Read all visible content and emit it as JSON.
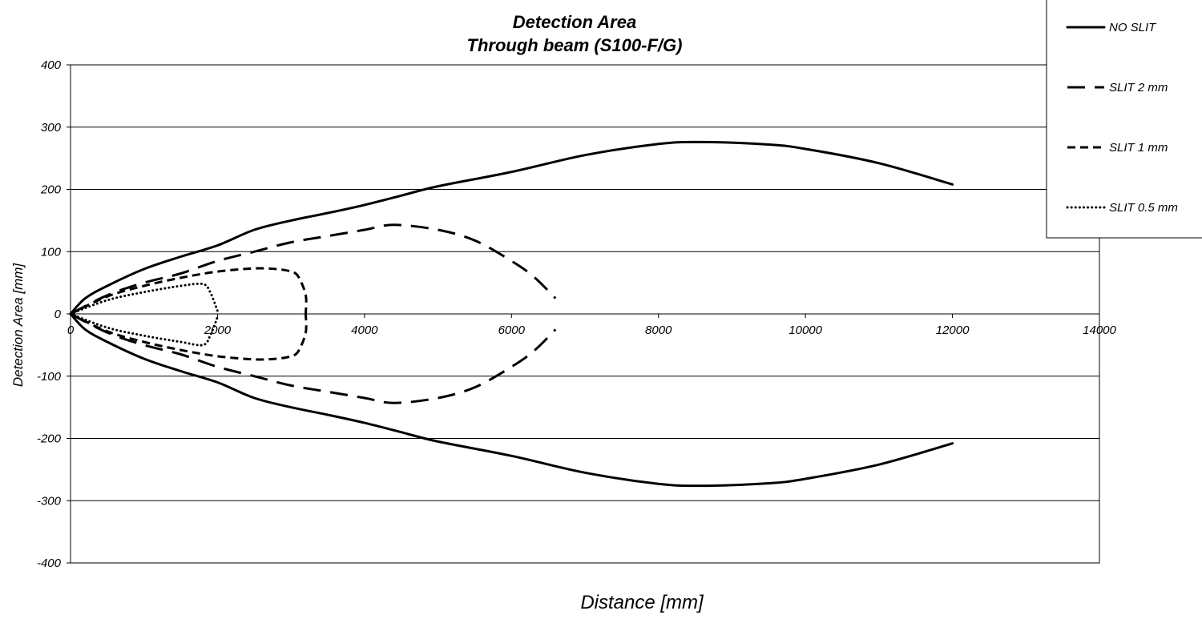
{
  "chart_data": {
    "type": "line",
    "title": "Detection Area",
    "subtitle": "Through beam (S100-F/G)",
    "xlabel": "Distance [mm]",
    "ylabel": "Detection Area [mm]",
    "xlim": [
      0,
      14000
    ],
    "ylim": [
      -400,
      400
    ],
    "x_ticks": [
      0,
      2000,
      4000,
      6000,
      8000,
      10000,
      12000,
      14000
    ],
    "y_ticks": [
      400,
      300,
      200,
      100,
      0,
      -100,
      -200,
      -300,
      -400
    ],
    "grid": "horizontal",
    "legend_position": "top-right",
    "series": [
      {
        "name": "NO SLIT",
        "style": "solid",
        "upper": [
          [
            0,
            0
          ],
          [
            200,
            25
          ],
          [
            500,
            45
          ],
          [
            1000,
            72
          ],
          [
            1500,
            92
          ],
          [
            2000,
            110
          ],
          [
            2500,
            135
          ],
          [
            3000,
            150
          ],
          [
            3500,
            162
          ],
          [
            4000,
            175
          ],
          [
            4500,
            190
          ],
          [
            5000,
            205
          ],
          [
            6000,
            228
          ],
          [
            7000,
            255
          ],
          [
            8000,
            273
          ],
          [
            8600,
            276
          ],
          [
            9500,
            272
          ],
          [
            10000,
            265
          ],
          [
            11000,
            242
          ],
          [
            12000,
            208
          ]
        ],
        "lower": [
          [
            0,
            0
          ],
          [
            200,
            -25
          ],
          [
            500,
            -45
          ],
          [
            1000,
            -72
          ],
          [
            1500,
            -92
          ],
          [
            2000,
            -110
          ],
          [
            2500,
            -135
          ],
          [
            3000,
            -150
          ],
          [
            3500,
            -162
          ],
          [
            4000,
            -175
          ],
          [
            4500,
            -190
          ],
          [
            5000,
            -205
          ],
          [
            6000,
            -228
          ],
          [
            7000,
            -255
          ],
          [
            8000,
            -273
          ],
          [
            8600,
            -276
          ],
          [
            9500,
            -272
          ],
          [
            10000,
            -265
          ],
          [
            11000,
            -242
          ],
          [
            12000,
            -208
          ]
        ]
      },
      {
        "name": "SLIT 2 mm",
        "style": "long-dash",
        "upper": [
          [
            0,
            0
          ],
          [
            500,
            30
          ],
          [
            1000,
            50
          ],
          [
            1500,
            65
          ],
          [
            2000,
            85
          ],
          [
            2500,
            100
          ],
          [
            3000,
            115
          ],
          [
            3500,
            125
          ],
          [
            4000,
            135
          ],
          [
            4400,
            143
          ],
          [
            5000,
            135
          ],
          [
            5500,
            118
          ],
          [
            6000,
            85
          ],
          [
            6300,
            60
          ],
          [
            6600,
            25
          ]
        ],
        "lower": [
          [
            0,
            0
          ],
          [
            500,
            -30
          ],
          [
            1000,
            -50
          ],
          [
            1500,
            -65
          ],
          [
            2000,
            -85
          ],
          [
            2500,
            -100
          ],
          [
            3000,
            -115
          ],
          [
            3500,
            -125
          ],
          [
            4000,
            -135
          ],
          [
            4400,
            -143
          ],
          [
            5000,
            -135
          ],
          [
            5500,
            -118
          ],
          [
            6000,
            -85
          ],
          [
            6300,
            -60
          ],
          [
            6600,
            -25
          ]
        ]
      },
      {
        "name": "SLIT 1 mm",
        "style": "dash",
        "upper": [
          [
            0,
            0
          ],
          [
            500,
            28
          ],
          [
            1000,
            45
          ],
          [
            1500,
            58
          ],
          [
            2000,
            68
          ],
          [
            2500,
            73
          ],
          [
            2800,
            72
          ],
          [
            3000,
            68
          ],
          [
            3100,
            60
          ],
          [
            3200,
            30
          ],
          [
            3200,
            0
          ]
        ],
        "lower": [
          [
            0,
            0
          ],
          [
            500,
            -28
          ],
          [
            1000,
            -45
          ],
          [
            1500,
            -58
          ],
          [
            2000,
            -68
          ],
          [
            2500,
            -73
          ],
          [
            2800,
            -72
          ],
          [
            3000,
            -68
          ],
          [
            3100,
            -60
          ],
          [
            3200,
            -30
          ],
          [
            3200,
            0
          ]
        ]
      },
      {
        "name": "SLIT 0.5 mm",
        "style": "dot",
        "upper": [
          [
            0,
            0
          ],
          [
            500,
            22
          ],
          [
            1000,
            35
          ],
          [
            1500,
            45
          ],
          [
            1800,
            48
          ],
          [
            1900,
            35
          ],
          [
            2000,
            5
          ]
        ],
        "lower": [
          [
            0,
            0
          ],
          [
            500,
            -22
          ],
          [
            1000,
            -35
          ],
          [
            1500,
            -45
          ],
          [
            1800,
            -50
          ],
          [
            1900,
            -35
          ],
          [
            2000,
            -5
          ]
        ]
      }
    ]
  }
}
